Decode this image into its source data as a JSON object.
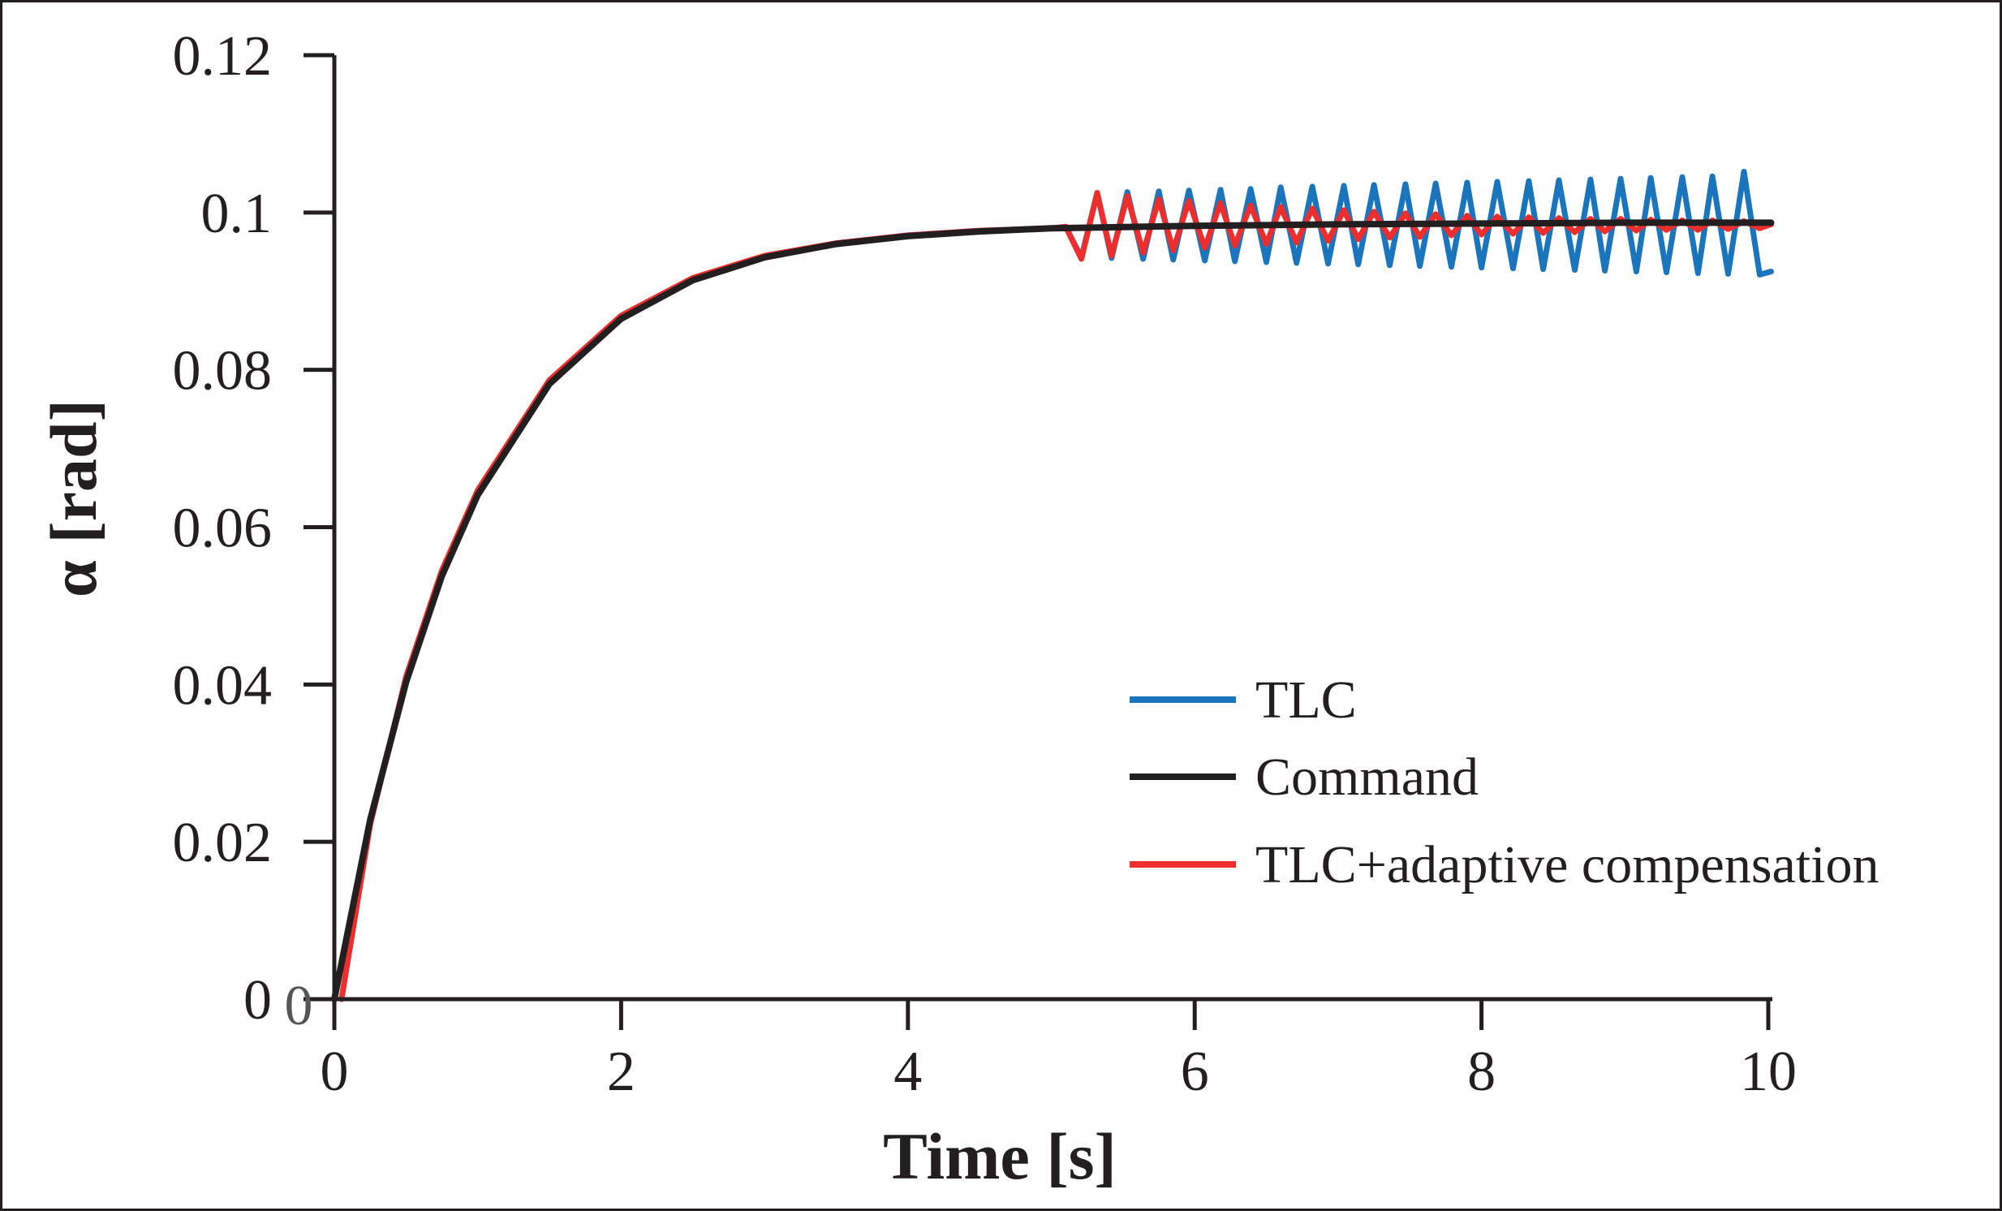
{
  "chart_data": {
    "type": "line",
    "xlabel": "Time [s]",
    "ylabel": "α [rad]",
    "xlim": [
      0,
      10
    ],
    "ylim": [
      0,
      0.12
    ],
    "xticks": [
      0,
      2,
      4,
      6,
      8,
      10
    ],
    "xtick_labels": [
      "0",
      "2",
      "4",
      "6",
      "8",
      "10"
    ],
    "yticks": [
      0,
      0.02,
      0.04,
      0.06,
      0.08,
      0.1,
      0.12
    ],
    "ytick_labels": [
      "0",
      "0.02",
      "0.04",
      "0.06",
      "0.08",
      "0.1",
      "0.12"
    ],
    "origin_extra_label": "0",
    "grid": false,
    "legend_position": "bottom-right",
    "series": [
      {
        "name": "TLC",
        "color": "#1a75bc",
        "x": [
          0,
          0.25,
          0.5,
          0.75,
          1,
          1.5,
          2,
          2.5,
          3,
          3.5,
          4,
          4.5,
          5,
          5.1,
          5.21,
          5.32,
          5.42,
          5.53,
          5.64,
          5.75,
          5.85,
          5.96,
          6.07,
          6.18,
          6.28,
          6.39,
          6.5,
          6.6,
          6.71,
          6.82,
          6.93,
          7.04,
          7.14,
          7.25,
          7.36,
          7.47,
          7.57,
          7.68,
          7.79,
          7.9,
          8.0,
          8.11,
          8.22,
          8.33,
          8.43,
          8.54,
          8.65,
          8.76,
          8.86,
          8.97,
          9.08,
          9.18,
          9.29,
          9.4,
          9.51,
          9.61,
          9.72,
          9.83,
          9.94,
          10.02
        ],
        "y": [
          0,
          0.0228,
          0.0403,
          0.0538,
          0.0641,
          0.0782,
          0.0865,
          0.0914,
          0.0943,
          0.096,
          0.097,
          0.0976,
          0.098,
          0.0982,
          0.0943,
          0.1025,
          0.0942,
          0.1026,
          0.0941,
          0.1027,
          0.094,
          0.1028,
          0.0939,
          0.1029,
          0.0938,
          0.103,
          0.0937,
          0.1032,
          0.0936,
          0.1033,
          0.0935,
          0.1034,
          0.0934,
          0.1035,
          0.0933,
          0.1036,
          0.0932,
          0.1037,
          0.0931,
          0.1038,
          0.093,
          0.1039,
          0.0929,
          0.104,
          0.0928,
          0.1041,
          0.0927,
          0.1042,
          0.0926,
          0.1043,
          0.0925,
          0.1044,
          0.0924,
          0.1045,
          0.0923,
          0.1046,
          0.0922,
          0.1052,
          0.0921,
          0.0925
        ]
      },
      {
        "name": "Command",
        "color": "#231f20",
        "x": [
          0,
          0.25,
          0.5,
          0.75,
          1,
          1.5,
          2,
          2.5,
          3,
          3.5,
          4,
          4.5,
          5,
          6,
          7,
          8,
          9,
          10.02
        ],
        "y": [
          0,
          0.0228,
          0.0403,
          0.0538,
          0.0641,
          0.0782,
          0.0865,
          0.0914,
          0.0943,
          0.096,
          0.097,
          0.0976,
          0.098,
          0.0983,
          0.0985,
          0.0986,
          0.0987,
          0.0987
        ]
      },
      {
        "name": "TLC+adaptive compensation",
        "color": "#ee2d2d",
        "x": [
          0.05,
          0.25,
          0.5,
          0.75,
          1,
          1.5,
          2,
          2.5,
          3,
          3.5,
          4,
          4.5,
          5,
          5.1,
          5.21,
          5.32,
          5.42,
          5.53,
          5.64,
          5.75,
          5.85,
          5.96,
          6.07,
          6.18,
          6.28,
          6.39,
          6.5,
          6.6,
          6.71,
          6.82,
          6.93,
          7.04,
          7.14,
          7.25,
          7.36,
          7.47,
          7.57,
          7.68,
          7.79,
          7.9,
          8.0,
          8.11,
          8.22,
          8.33,
          8.43,
          8.54,
          8.65,
          8.76,
          8.86,
          8.97,
          9.08,
          9.18,
          9.29,
          9.4,
          9.51,
          9.61,
          9.72,
          9.83,
          9.94,
          10.02
        ],
        "y": [
          0,
          0.0222,
          0.041,
          0.0545,
          0.0647,
          0.0787,
          0.0869,
          0.0917,
          0.0945,
          0.0961,
          0.0971,
          0.0977,
          0.098,
          0.0982,
          0.0941,
          0.1025,
          0.0945,
          0.1021,
          0.0949,
          0.1017,
          0.0952,
          0.1015,
          0.0955,
          0.1012,
          0.0958,
          0.1009,
          0.096,
          0.1007,
          0.0962,
          0.1005,
          0.0964,
          0.1003,
          0.0966,
          0.1001,
          0.0968,
          0.0999,
          0.0969,
          0.0998,
          0.0971,
          0.0996,
          0.0972,
          0.0995,
          0.0973,
          0.0994,
          0.0974,
          0.0993,
          0.0975,
          0.0992,
          0.0976,
          0.0992,
          0.0977,
          0.0991,
          0.0978,
          0.099,
          0.0978,
          0.099,
          0.0979,
          0.0989,
          0.098,
          0.0985
        ]
      }
    ]
  }
}
